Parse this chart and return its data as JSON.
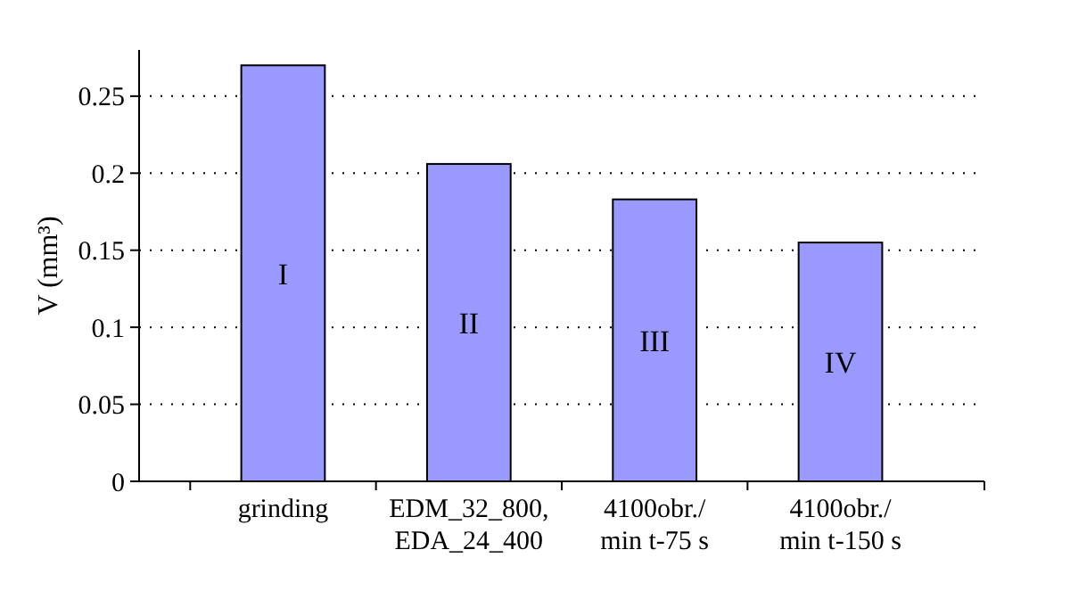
{
  "chart_data": {
    "type": "bar",
    "ylabel": "V (mm³)",
    "categories": [
      "grinding",
      "EDM_32_800,\nEDA_24_400",
      "4100obr./\nmin t-75 s",
      "4100obr./\nmin t-150 s"
    ],
    "values": [
      0.27,
      0.206,
      0.183,
      0.155
    ],
    "color": "#9999ff",
    "value_labels": [
      "I",
      "II",
      "III",
      "IV"
    ],
    "ylim": [
      0,
      0.28
    ],
    "yticks": [
      0,
      0.05,
      0.1,
      0.15,
      0.2,
      0.25
    ],
    "grid": "y"
  }
}
